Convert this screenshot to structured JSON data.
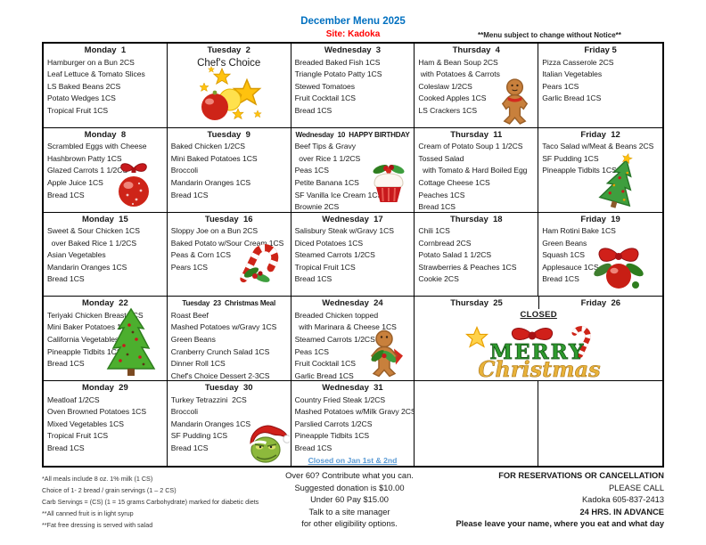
{
  "header": {
    "title": "December Menu 2025",
    "site": "Site: Kadoka",
    "notice": "**Menu subject to change without Notice**"
  },
  "colors": {
    "title": "#0070C0",
    "site": "#FF0000",
    "closed_link": "#5B9BD5",
    "border": "#000000"
  },
  "calendar": {
    "rows": [
      {
        "cells": [
          {
            "type": "day",
            "header": "Monday  1",
            "items": [
              "Hamburger on a Bun 2CS",
              "Leaf Lettuce & Tomato Slices",
              "LS Baked Beans 2CS",
              "Potato Wedges 1CS",
              "Tropical Fruit 1CS"
            ]
          },
          {
            "type": "day",
            "header": "Tuesday  2",
            "center": true,
            "items": [
              "Chef's Choice"
            ],
            "icon": "ornament-stars-icon"
          },
          {
            "type": "day",
            "header": "Wednesday  3",
            "items": [
              "Breaded Baked Fish 1CS",
              "Triangle Potato Patty 1CS",
              "Stewed Tomatoes",
              "Fruit Cocktail 1CS",
              "Bread 1CS"
            ]
          },
          {
            "type": "day",
            "header": "Thursday  4",
            "items": [
              "Ham & Bean Soup 2CS",
              " with Potatoes & Carrots",
              "Coleslaw 1/2CS",
              "Cooked Apples 1CS",
              "LS Crackers 1CS"
            ],
            "icon": "gingerbread-man-icon"
          },
          {
            "type": "day",
            "header": "Friday 5",
            "items": [
              "Pizza Casserole 2CS",
              "Italian Vegetables",
              "Pears 1CS",
              "Garlic Bread 1CS"
            ]
          }
        ]
      },
      {
        "cells": [
          {
            "type": "day",
            "header": "Monday  8",
            "items": [
              "Scrambled Eggs with Cheese",
              "Hashbrown Patty 1CS",
              "Glazed Carrots 1 1/2CS",
              "Apple Juice 1CS",
              "Bread 1CS"
            ],
            "icon": "red-ornament-icon"
          },
          {
            "type": "day",
            "header": "Tuesday  9",
            "items": [
              "Baked Chicken 1/2CS",
              "Mini Baked Potatoes 1CS",
              "Broccoli",
              "Mandarin Oranges 1CS",
              "Bread 1CS"
            ]
          },
          {
            "type": "day",
            "header": "Wednesday  10  HAPPY BIRTHDAY",
            "items": [
              "Beef Tips & Gravy",
              "  over Rice 1 1/2CS",
              "Peas 1CS",
              "Petite Banana 1CS",
              "SF Vanilla Ice Cream 1CS",
              "Brownie 2CS"
            ],
            "icon": "birthday-cupcake-icon"
          },
          {
            "type": "day",
            "header": "Thursday  11",
            "items": [
              "Cream of Potato Soup 1 1/2CS",
              "Tossed Salad",
              "  with Tomato & Hard Boiled Egg",
              "Cottage Cheese 1CS",
              "Peaches 1CS",
              "Bread 1CS"
            ]
          },
          {
            "type": "day",
            "header": "Friday  12",
            "items": [
              "Taco Salad w/Meat & Beans 2CS",
              "SF Pudding 1CS",
              "Pineapple Tidbits 1CS"
            ],
            "icon": "leaning-tree-icon"
          }
        ]
      },
      {
        "cells": [
          {
            "type": "day",
            "header": "Monday  15",
            "items": [
              "Sweet & Sour Chicken 1CS",
              "  over Baked Rice 1 1/2CS",
              "Asian Vegetables",
              "Mandarin Oranges 1CS",
              "Bread 1CS"
            ]
          },
          {
            "type": "day",
            "header": "Tuesday  16",
            "items": [
              "Sloppy Joe on a Bun 2CS",
              "Baked Potato w/Sour Cream 1CS",
              "Peas & Corn 1CS",
              "Pears 1CS"
            ],
            "icon": "candy-cane-icon"
          },
          {
            "type": "day",
            "header": "Wednesday  17",
            "items": [
              "Salisbury Steak w/Gravy 1CS",
              "Diced Potatoes 1CS",
              "Steamed Carrots 1/2CS",
              "Tropical Fruit 1CS",
              "Bread 1CS"
            ]
          },
          {
            "type": "day",
            "header": "Thursday  18",
            "items": [
              "Chili 1CS",
              "Cornbread 2CS",
              "Potato Salad 1 1/2CS",
              "Strawberries & Peaches 1CS",
              "Cookie 2CS"
            ]
          },
          {
            "type": "day",
            "header": "Friday  19",
            "items": [
              "Ham Rotini Bake 1CS",
              "Green Beans",
              "Squash 1CS",
              "Applesauce 1CS",
              "Bread 1CS"
            ],
            "icon": "ornament-bow-icon"
          }
        ]
      },
      {
        "cells": [
          {
            "type": "day",
            "header": "Monday  22",
            "items": [
              "Teriyaki Chicken Breast 1CS",
              "Mini Baker Potatoes 1CS",
              "California Vegetables",
              "Pineapple Tidbits 1CS",
              "Bread 1CS"
            ],
            "icon": "christmas-tree-icon"
          },
          {
            "type": "day",
            "header": "Tuesday  23  Christmas Meal",
            "items": [
              "Roast Beef",
              "Mashed Potatoes w/Gravy 1CS",
              "Green Beans",
              "Cranberry Crunch Salad 1CS",
              "Dinner Roll 1CS",
              "Chef's Choice Dessert 2-3CS"
            ]
          },
          {
            "type": "day",
            "header": "Wednesday  24",
            "items": [
              "Breaded Chicken topped",
              "  with Marinara & Cheese 1CS",
              "Steamed Carrots 1/2CS",
              "Peas 1CS",
              "Fruit Cocktail 1CS",
              "Garlic Bread 1CS"
            ],
            "icon": "gingerbread-holly-icon"
          },
          {
            "type": "merged",
            "headers": [
              "Thursday  25",
              "Friday  26"
            ],
            "closed_label": "CLOSED",
            "icon": "merry-christmas-icon"
          }
        ]
      },
      {
        "cells": [
          {
            "type": "day",
            "header": "Monday  29",
            "items": [
              "Meatloaf 1/2CS",
              "Oven Browned Potatoes 1CS",
              "Mixed Vegetables 1CS",
              "Tropical Fruit 1CS",
              "Bread 1CS"
            ]
          },
          {
            "type": "day",
            "header": "Tuesday  30",
            "items": [
              "Turkey Tetrazzini  2CS",
              "Broccoli",
              "Mandarin Oranges 1CS",
              "SF Pudding 1CS",
              "Bread 1CS"
            ],
            "icon": "grinch-icon"
          },
          {
            "type": "day",
            "header": "Wednesday  31",
            "items": [
              "Country Fried Steak 1/2CS",
              "Mashed Potatoes w/Milk Gravy 2CS",
              "Parslied Carrots 1/2CS",
              "Pineapple Tidbits 1CS",
              "Bread 1CS"
            ],
            "note": "Closed on Jan 1st & 2nd"
          },
          {
            "type": "empty"
          },
          {
            "type": "empty"
          }
        ]
      }
    ]
  },
  "footer": {
    "notes": [
      "*All meals include 8 oz. 1% milk (1 CS)",
      "Choice of 1- 2 bread / grain servings (1 – 2 CS)",
      "Carb Servings = (CS) (1 = 15 grams Carbohydrate) marked for diabetic diets",
      "**All canned fruit is in light syrup",
      "**Fat free dressing is served with salad"
    ],
    "donation": [
      "Over 60? Contribute what you can.",
      "Suggested donation is $10.00",
      "Under 60 Pay $15.00",
      "Talk to a site manager",
      "for other eligibility options."
    ],
    "reservations": [
      "FOR  RESERVATIONS OR CANCELLATION",
      "PLEASE CALL",
      "Kadoka  605-837-2413",
      "24 HRS. IN ADVANCE",
      "Please leave your name, where you eat and what day"
    ]
  }
}
